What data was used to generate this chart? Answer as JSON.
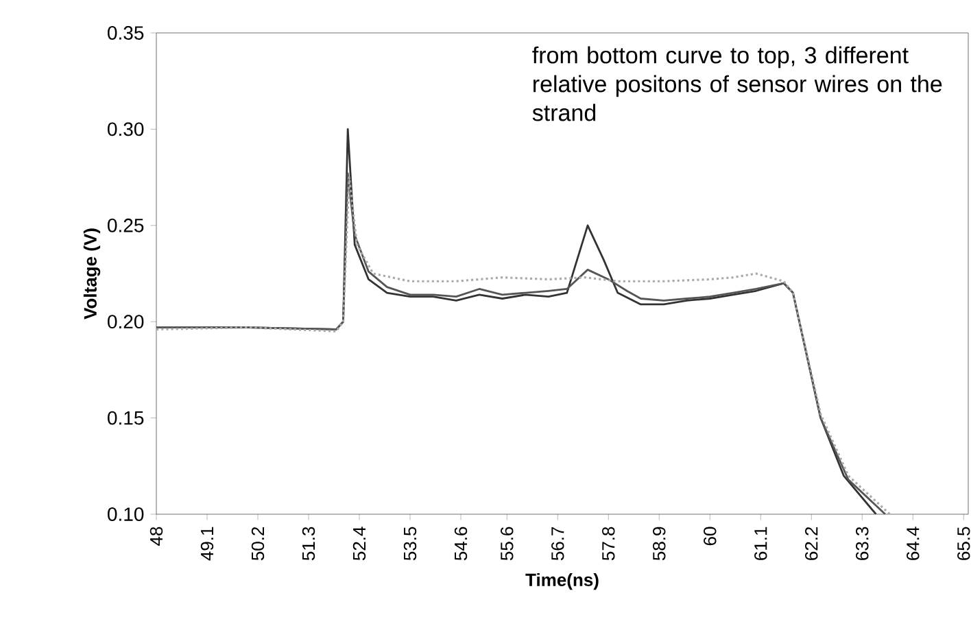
{
  "chart_data": {
    "type": "line",
    "xlabel": "Time(ns)",
    "ylabel": "Voltage (V)",
    "annotations": [
      "from  bottom curve to top, 3 different relative positons of sensor wires on the strand"
    ],
    "xlim": [
      48,
      65.6
    ],
    "ylim": [
      0.1,
      0.35
    ],
    "xticks": [
      48,
      49.1,
      50.2,
      51.3,
      52.4,
      53.5,
      54.6,
      55.6,
      56.7,
      57.8,
      58.9,
      60,
      61.1,
      62.2,
      63.3,
      64.4,
      65.5
    ],
    "yticks": [
      {
        "value": 0.1,
        "label": "0.10"
      },
      {
        "value": 0.15,
        "label": "0.15"
      },
      {
        "value": 0.2,
        "label": "0.20"
      },
      {
        "value": 0.25,
        "label": "0.25"
      },
      {
        "value": 0.3,
        "label": "0.30"
      },
      {
        "value": 0.35,
        "label": "0.35"
      }
    ],
    "marker": "none",
    "series": [
      {
        "color": "#333333",
        "line_style": "solid",
        "x": [
          48,
          50,
          51.9,
          52.05,
          52.15,
          52.3,
          52.6,
          53,
          53.5,
          54,
          54.5,
          55,
          55.5,
          56,
          56.5,
          56.9,
          57.35,
          57.7,
          58,
          58.5,
          59,
          59.5,
          60,
          60.5,
          61,
          61.6,
          61.8,
          62.4,
          62.9,
          63.6
        ],
        "values": [
          0.197,
          0.197,
          0.196,
          0.2,
          0.3,
          0.24,
          0.222,
          0.215,
          0.213,
          0.213,
          0.211,
          0.214,
          0.212,
          0.214,
          0.213,
          0.215,
          0.25,
          0.232,
          0.215,
          0.209,
          0.209,
          0.211,
          0.212,
          0.214,
          0.216,
          0.22,
          0.215,
          0.15,
          0.12,
          0.1
        ]
      },
      {
        "color": "#555555",
        "line_style": "solid",
        "x": [
          48,
          50,
          51.9,
          52.05,
          52.15,
          52.3,
          52.6,
          53,
          53.5,
          54,
          54.5,
          55,
          55.5,
          56,
          56.5,
          56.9,
          57.35,
          57.8,
          58.2,
          58.5,
          59,
          59.5,
          60,
          60.5,
          61,
          61.6,
          61.8,
          62.4,
          63,
          63.8
        ],
        "values": [
          0.197,
          0.197,
          0.196,
          0.2,
          0.277,
          0.245,
          0.226,
          0.218,
          0.214,
          0.214,
          0.213,
          0.217,
          0.214,
          0.215,
          0.216,
          0.217,
          0.227,
          0.222,
          0.216,
          0.212,
          0.211,
          0.212,
          0.213,
          0.215,
          0.217,
          0.22,
          0.215,
          0.15,
          0.118,
          0.1
        ]
      },
      {
        "color": "#aaaaaa",
        "line_style": "dotted",
        "x": [
          48,
          50,
          51.9,
          52.05,
          52.18,
          52.35,
          52.7,
          53.5,
          54.5,
          55.5,
          56.5,
          57.3,
          58,
          59,
          60,
          60.5,
          61,
          61.6,
          61.8,
          62.4,
          63,
          63.9
        ],
        "values": [
          0.196,
          0.197,
          0.195,
          0.2,
          0.275,
          0.24,
          0.225,
          0.221,
          0.221,
          0.223,
          0.222,
          0.223,
          0.221,
          0.221,
          0.222,
          0.223,
          0.225,
          0.221,
          0.215,
          0.152,
          0.12,
          0.1
        ]
      }
    ]
  }
}
